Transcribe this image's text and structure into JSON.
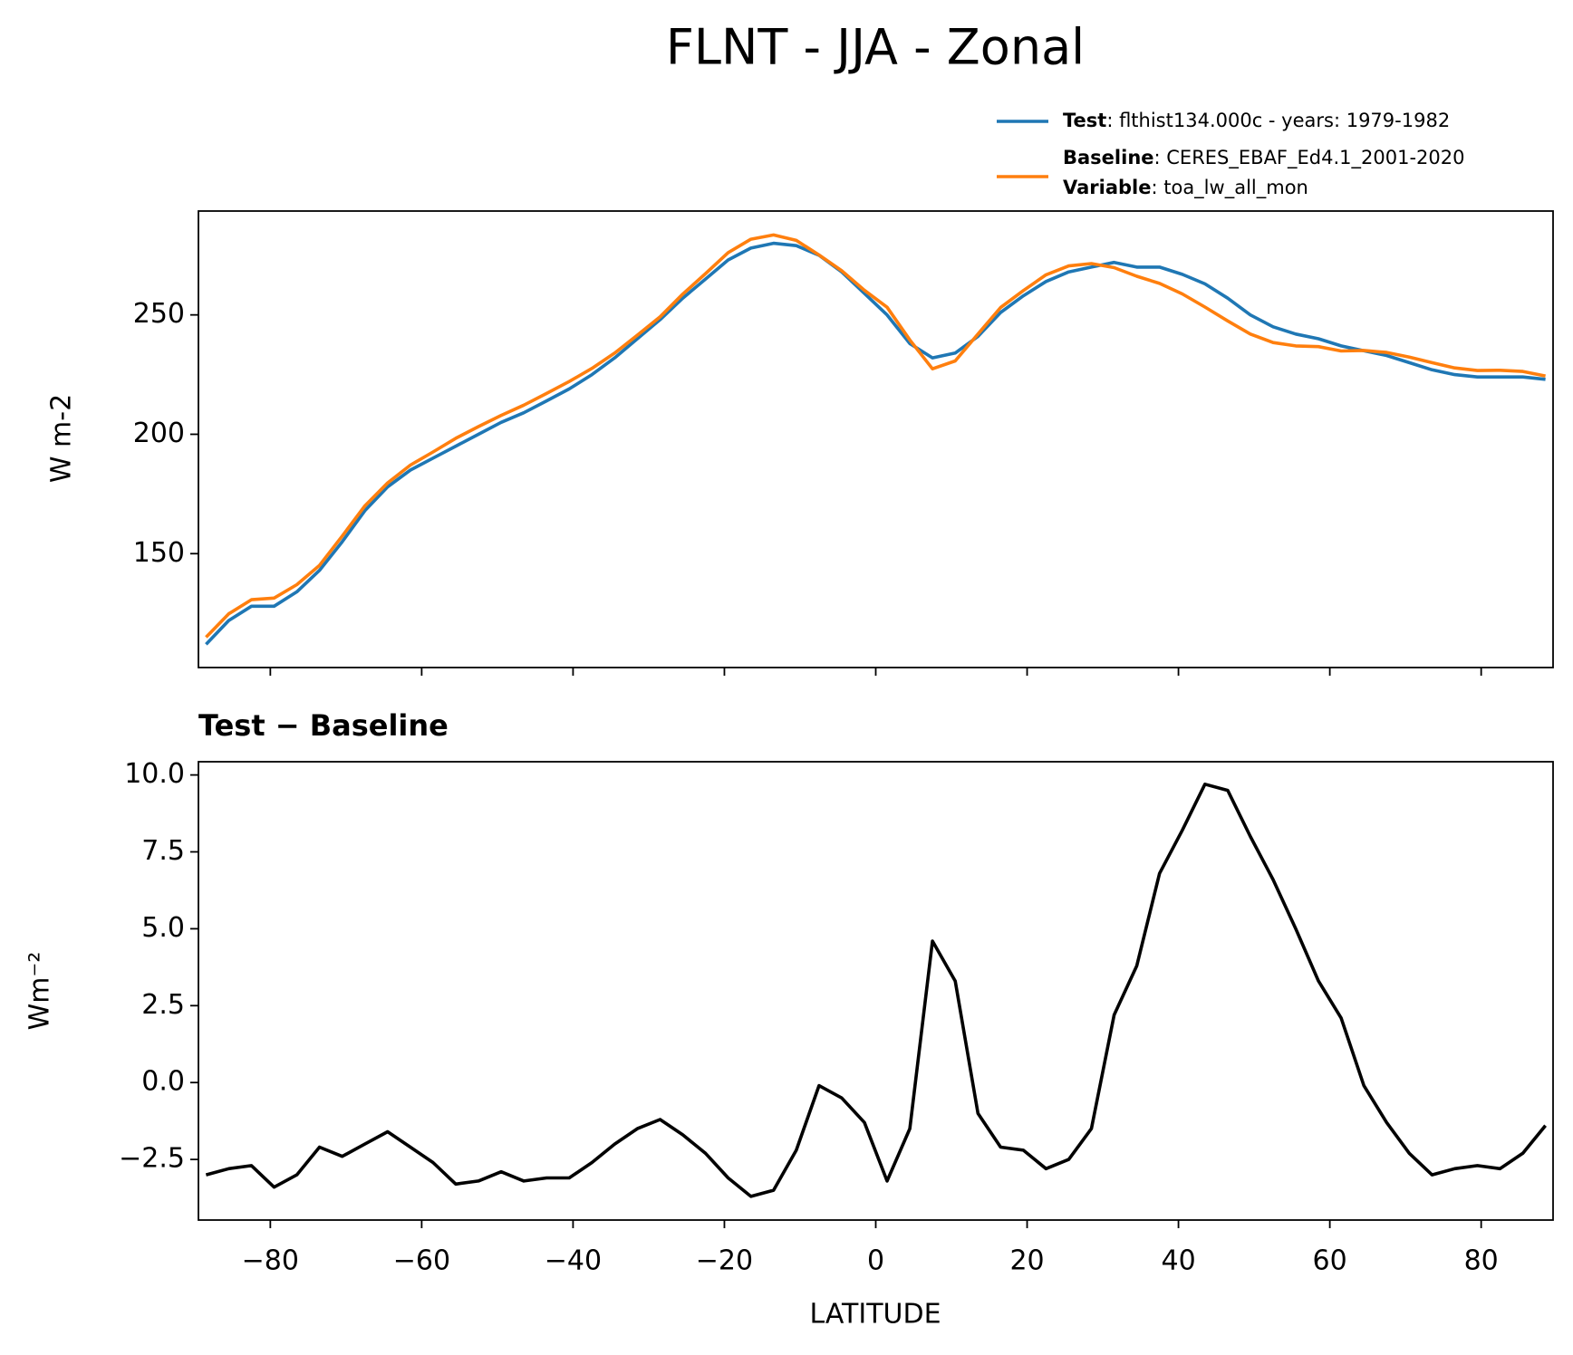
{
  "chart_data": [
    {
      "type": "line",
      "title": "FLNT - JJA - Zonal",
      "ylabel": "W m-2",
      "legend_note": {
        "label": "Variable",
        "text": ": toa_lw_all_mon"
      },
      "x": [
        -88.5,
        -85.5,
        -82.5,
        -79.5,
        -76.5,
        -73.5,
        -70.5,
        -67.5,
        -64.5,
        -61.5,
        -58.5,
        -55.5,
        -52.5,
        -49.5,
        -46.5,
        -43.5,
        -40.5,
        -37.5,
        -34.5,
        -31.5,
        -28.5,
        -25.5,
        -22.5,
        -19.5,
        -16.5,
        -13.5,
        -10.5,
        -7.5,
        -4.5,
        -1.5,
        1.5,
        4.5,
        7.5,
        10.5,
        13.5,
        16.5,
        19.5,
        22.5,
        25.5,
        28.5,
        31.5,
        34.5,
        37.5,
        40.5,
        43.5,
        46.5,
        49.5,
        52.5,
        55.5,
        58.5,
        61.5,
        64.5,
        67.5,
        70.5,
        73.5,
        76.5,
        79.5,
        82.5,
        85.5,
        88.5
      ],
      "series": [
        {
          "name": "Test",
          "legend_text": ": flthist134.000c - years: 1979-1982",
          "color": "#1f77b4",
          "values": [
            112,
            122,
            128,
            128,
            134,
            143,
            155,
            168,
            178,
            185,
            190,
            195,
            200,
            205,
            209,
            214,
            219,
            225,
            232,
            240,
            248,
            257,
            265,
            273,
            278,
            280,
            279,
            275,
            268,
            259,
            250,
            238,
            232,
            234,
            241,
            251,
            258,
            264,
            268,
            270,
            272,
            270,
            270,
            267,
            263,
            257,
            250,
            245,
            242,
            240,
            237,
            235,
            233,
            230,
            227,
            225,
            224,
            224,
            224,
            223
          ]
        },
        {
          "name": "Baseline",
          "legend_text": ": CERES_EBAF_Ed4.1_2001-2020",
          "color": "#ff7f0e",
          "values": [
            115,
            124.8,
            130.7,
            131.4,
            137,
            145.1,
            157.4,
            170,
            179.6,
            187.1,
            192.6,
            198.3,
            203.2,
            207.9,
            212.2,
            217.1,
            222.1,
            227.6,
            234,
            241.5,
            249.2,
            258.7,
            267.3,
            276.1,
            281.7,
            283.5,
            281.2,
            275.1,
            268.5,
            260.3,
            253.2,
            239.5,
            227.4,
            230.7,
            242,
            253.1,
            260.2,
            266.8,
            270.5,
            271.5,
            269.8,
            266.2,
            263.2,
            258.8,
            253.3,
            247.5,
            242,
            238.4,
            237,
            236.7,
            234.9,
            235.1,
            234.3,
            232.3,
            230,
            227.8,
            226.7,
            226.8,
            226.3,
            224.4
          ]
        }
      ],
      "xlim": [
        -89.5,
        89.5
      ],
      "xticks": [
        -80,
        -60,
        -40,
        -20,
        0,
        20,
        40,
        60,
        80
      ],
      "ylim": [
        102.3,
        293.5
      ],
      "yticks": [
        150,
        200,
        250
      ]
    },
    {
      "type": "line",
      "title": "Test − Baseline",
      "xlabel": "LATITUDE",
      "ylabel": "Wm⁻²",
      "x": [
        -88.5,
        -85.5,
        -82.5,
        -79.5,
        -76.5,
        -73.5,
        -70.5,
        -67.5,
        -64.5,
        -61.5,
        -58.5,
        -55.5,
        -52.5,
        -49.5,
        -46.5,
        -43.5,
        -40.5,
        -37.5,
        -34.5,
        -31.5,
        -28.5,
        -25.5,
        -22.5,
        -19.5,
        -16.5,
        -13.5,
        -10.5,
        -7.5,
        -4.5,
        -1.5,
        1.5,
        4.5,
        7.5,
        10.5,
        13.5,
        16.5,
        19.5,
        22.5,
        25.5,
        28.5,
        31.5,
        34.5,
        37.5,
        40.5,
        43.5,
        46.5,
        49.5,
        52.5,
        55.5,
        58.5,
        61.5,
        64.5,
        67.5,
        70.5,
        73.5,
        76.5,
        79.5,
        82.5,
        85.5,
        88.5
      ],
      "series": [
        {
          "color": "#000000",
          "values": [
            -3.0,
            -2.8,
            -2.7,
            -3.4,
            -3.0,
            -2.1,
            -2.4,
            -2.0,
            -1.6,
            -2.1,
            -2.6,
            -3.3,
            -3.2,
            -2.9,
            -3.2,
            -3.1,
            -3.1,
            -2.6,
            -2.0,
            -1.5,
            -1.2,
            -1.7,
            -2.3,
            -3.1,
            -3.7,
            -3.5,
            -2.2,
            -0.1,
            -0.5,
            -1.3,
            -3.2,
            -1.5,
            4.6,
            3.3,
            -1.0,
            -2.1,
            -2.2,
            -2.8,
            -2.5,
            -1.5,
            2.2,
            3.8,
            6.8,
            8.2,
            9.7,
            9.5,
            8.0,
            6.6,
            5.0,
            3.3,
            2.1,
            -0.1,
            -1.3,
            -2.3,
            -3.0,
            -2.8,
            -2.7,
            -2.8,
            -2.3,
            -1.4
          ]
        }
      ],
      "xlim": [
        -89.5,
        89.5
      ],
      "xticks": [
        {
          "value": -80,
          "label": "−80"
        },
        {
          "value": -60,
          "label": "−60"
        },
        {
          "value": -40,
          "label": "−40"
        },
        {
          "value": -20,
          "label": "−20"
        },
        0,
        20,
        40,
        60,
        80
      ],
      "ylim": [
        -4.47,
        10.43
      ],
      "yticks": [
        {
          "value": -2.5,
          "label": "−2.5"
        },
        {
          "value": 0,
          "label": "0.0"
        },
        {
          "value": 2.5,
          "label": "2.5"
        },
        {
          "value": 5,
          "label": "5.0"
        },
        {
          "value": 7.5,
          "label": "7.5"
        },
        {
          "value": 10,
          "label": "10.0"
        }
      ]
    }
  ]
}
